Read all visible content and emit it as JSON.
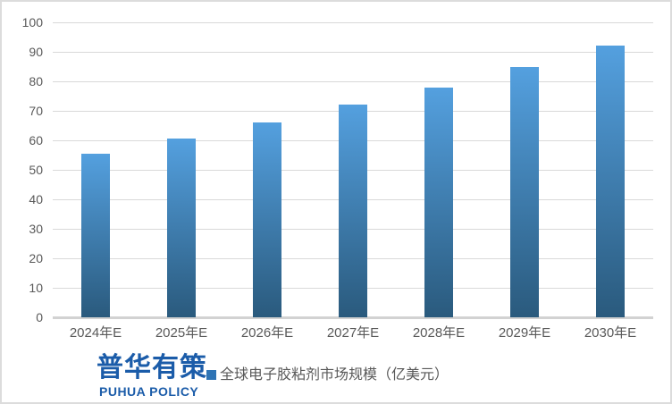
{
  "chart_data": {
    "type": "bar",
    "title": "",
    "categories": [
      "2024年E",
      "2025年E",
      "2026年E",
      "2027年E",
      "2028年E",
      "2029年E",
      "2030年E"
    ],
    "series": [
      {
        "name": "全球电子胶粘剂市场规模（亿美元）",
        "values": [
          55.5,
          60.5,
          66,
          72,
          78,
          85,
          92
        ]
      }
    ],
    "xlabel": "",
    "ylabel": "",
    "ylim": [
      0,
      100
    ],
    "ytick_step": 10,
    "yticks": [
      0,
      10,
      20,
      30,
      40,
      50,
      60,
      70,
      80,
      90,
      100
    ],
    "grid": "horizontal",
    "legend_position": "bottom"
  },
  "footer": {
    "logo_cn": "普华有策",
    "logo_en": "PUHUA POLICY",
    "legend_label": "全球电子胶粘剂市场规模（亿美元）"
  },
  "colors": {
    "bar_top": "#54A0DF",
    "bar_bottom": "#2A5A7D",
    "gridline": "#D9D9D9",
    "axis_line": "#D2D2D2",
    "axis_text": "#595959",
    "brand_blue": "#1B5CA9",
    "legend_marker": "#2E74B5"
  }
}
